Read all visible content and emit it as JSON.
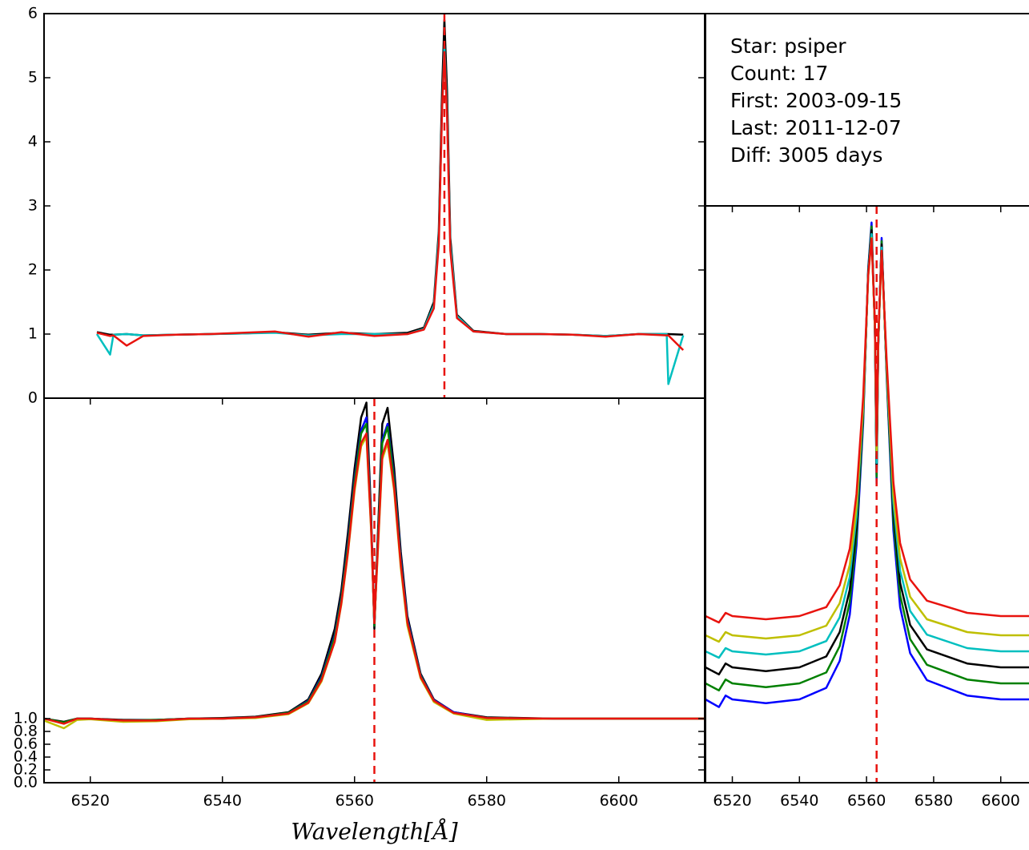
{
  "chart_data": [
    {
      "type": "line",
      "xlim": [
        6470,
        6670
      ],
      "ylim": [
        0,
        6
      ],
      "yticks": [
        0,
        1,
        2,
        3,
        4,
        5,
        6
      ],
      "vline": 6591.2,
      "x": [
        6486,
        6490,
        6491,
        6495,
        6500,
        6510,
        6520,
        6530,
        6540,
        6550,
        6560,
        6570,
        6580,
        6585,
        6588,
        6589.5,
        6590.5,
        6591.2,
        6592,
        6593,
        6595,
        6600,
        6610,
        6620,
        6630,
        6640,
        6650,
        6658.5,
        6659,
        6663.5
      ],
      "series": [
        {
          "color": "#000000",
          "values": [
            1.03,
            0.99,
            0.99,
            1.0,
            0.98,
            0.99,
            1.0,
            1.01,
            1.03,
            0.99,
            1.02,
            1.0,
            1.02,
            1.1,
            1.5,
            2.6,
            4.8,
            5.9,
            4.8,
            2.5,
            1.3,
            1.05,
            1.0,
            1.0,
            0.99,
            0.97,
            1.0,
            1.0,
            1.0,
            0.99
          ]
        },
        {
          "color": "#00bfbf",
          "values": [
            1.0,
            0.68,
            0.99,
            1.0,
            0.98,
            0.99,
            1.0,
            1.01,
            1.02,
            0.98,
            1.0,
            1.0,
            1.0,
            1.08,
            1.45,
            2.5,
            4.5,
            5.5,
            4.5,
            2.4,
            1.28,
            1.04,
            1.0,
            1.0,
            0.99,
            0.97,
            1.0,
            1.0,
            0.22,
            0.98
          ]
        },
        {
          "color": "#e8130e",
          "values": [
            1.02,
            0.97,
            0.98,
            0.82,
            0.97,
            0.99,
            1.0,
            1.02,
            1.04,
            0.96,
            1.03,
            0.97,
            1.0,
            1.07,
            1.4,
            2.4,
            4.5,
            5.4,
            4.4,
            2.3,
            1.25,
            1.04,
            1.0,
            1.0,
            0.99,
            0.96,
            1.0,
            0.98,
            0.98,
            0.75
          ]
        }
      ]
    },
    {
      "type": "line",
      "xlim": [
        6513,
        6613
      ],
      "ylim": [
        0,
        6
      ],
      "xlabel": "Wavelength[Å]",
      "xticks": [
        6520,
        6540,
        6560,
        6580,
        6600
      ],
      "yticks": [
        {
          "value": 0,
          "label": "0.0"
        },
        0.2,
        0.4,
        0.6,
        0.8,
        {
          "value": 1,
          "label": "1.0"
        }
      ],
      "vline": 6563,
      "x": [
        6513,
        6516,
        6518,
        6520,
        6525,
        6530,
        6535,
        6540,
        6545,
        6550,
        6553,
        6555,
        6557,
        6558,
        6559,
        6560,
        6561,
        6561.8,
        6562.5,
        6563,
        6563.5,
        6564.2,
        6565,
        6566,
        6567,
        6568,
        6570,
        6572,
        6575,
        6580,
        6590,
        6600,
        6613
      ],
      "series": [
        {
          "color": "#000000",
          "values": [
            1.0,
            0.95,
            1.0,
            1.0,
            0.98,
            0.98,
            1.0,
            1.01,
            1.03,
            1.1,
            1.3,
            1.7,
            2.4,
            3.0,
            3.9,
            4.9,
            5.7,
            5.93,
            4.2,
            2.4,
            3.8,
            5.6,
            5.85,
            4.9,
            3.6,
            2.6,
            1.7,
            1.3,
            1.1,
            1.02,
            1.0,
            1.0,
            1.0
          ]
        },
        {
          "color": "#0000ff",
          "values": [
            1.0,
            0.93,
            1.0,
            1.0,
            0.97,
            0.98,
            1.0,
            1.0,
            1.02,
            1.09,
            1.28,
            1.65,
            2.3,
            2.9,
            3.75,
            4.75,
            5.5,
            5.7,
            4.1,
            2.45,
            3.7,
            5.35,
            5.6,
            4.75,
            3.5,
            2.55,
            1.68,
            1.29,
            1.1,
            1.01,
            1.0,
            1.0,
            1.0
          ]
        },
        {
          "color": "#008000",
          "values": [
            1.0,
            0.94,
            1.0,
            1.0,
            0.97,
            0.98,
            1.0,
            1.0,
            1.02,
            1.09,
            1.27,
            1.63,
            2.27,
            2.87,
            3.7,
            4.7,
            5.45,
            5.6,
            4.05,
            2.45,
            3.68,
            5.3,
            5.55,
            4.7,
            3.45,
            2.52,
            1.67,
            1.28,
            1.09,
            1.01,
            1.0,
            1.0,
            1.0
          ]
        },
        {
          "color": "#bfbf00",
          "values": [
            0.97,
            0.85,
            0.98,
            0.99,
            0.95,
            0.96,
            0.99,
            1.0,
            1.01,
            1.07,
            1.24,
            1.58,
            2.2,
            2.78,
            3.58,
            4.55,
            5.25,
            5.4,
            3.95,
            2.5,
            3.55,
            5.05,
            5.3,
            4.55,
            3.35,
            2.45,
            1.63,
            1.26,
            1.08,
            0.98,
            1.0,
            1.0,
            1.0
          ]
        },
        {
          "color": "#e8130e",
          "values": [
            1.0,
            0.92,
            1.0,
            1.0,
            0.97,
            0.97,
            1.0,
            1.0,
            1.02,
            1.08,
            1.25,
            1.6,
            2.2,
            2.8,
            3.6,
            4.6,
            5.3,
            5.45,
            4.0,
            2.5,
            3.6,
            5.1,
            5.35,
            4.6,
            3.4,
            2.5,
            1.65,
            1.28,
            1.09,
            1.01,
            1.0,
            1.0,
            1.0
          ]
        }
      ]
    },
    {
      "type": "line",
      "xlim": [
        6512,
        6612
      ],
      "ylim": [
        0,
        9
      ],
      "xticks": [
        6520,
        6540,
        6560,
        6580,
        6600
      ],
      "vline": 6563,
      "x": [
        6512,
        6516,
        6518,
        6520,
        6530,
        6540,
        6548,
        6552,
        6555,
        6557,
        6559,
        6560.5,
        6561.5,
        6562.5,
        6563,
        6563.5,
        6564.5,
        6566,
        6568,
        6570,
        6573,
        6578,
        6590,
        6600,
        6612
      ],
      "series": [
        {
          "color": "#0000ff",
          "values": [
            1.3,
            1.18,
            1.36,
            1.3,
            1.24,
            1.3,
            1.48,
            1.9,
            2.62,
            3.7,
            5.62,
            8.02,
            8.74,
            7.06,
            4.66,
            6.82,
            8.5,
            6.34,
            3.94,
            2.74,
            2.02,
            1.6,
            1.36,
            1.3,
            1.3
          ]
        },
        {
          "color": "#008000",
          "values": [
            1.55,
            1.44,
            1.61,
            1.55,
            1.49,
            1.55,
            1.72,
            2.13,
            2.82,
            3.85,
            5.69,
            7.99,
            8.68,
            7.07,
            4.77,
            6.84,
            8.45,
            6.38,
            4.08,
            2.93,
            2.24,
            1.84,
            1.61,
            1.55,
            1.55
          ]
        },
        {
          "color": "#000000",
          "values": [
            1.8,
            1.69,
            1.86,
            1.8,
            1.74,
            1.8,
            1.97,
            2.35,
            3.01,
            4.0,
            5.76,
            7.96,
            8.62,
            7.08,
            4.88,
            6.86,
            8.4,
            6.42,
            4.22,
            3.12,
            2.46,
            2.08,
            1.86,
            1.8,
            1.8
          ]
        },
        {
          "color": "#00bfbf",
          "values": [
            2.05,
            1.95,
            2.1,
            2.05,
            2.0,
            2.05,
            2.21,
            2.58,
            3.21,
            4.15,
            5.83,
            7.93,
            8.56,
            7.09,
            4.99,
            6.88,
            8.35,
            6.46,
            4.36,
            3.31,
            2.68,
            2.31,
            2.1,
            2.05,
            2.05
          ]
        },
        {
          "color": "#bfbf00",
          "values": [
            2.3,
            2.2,
            2.35,
            2.3,
            2.25,
            2.3,
            2.45,
            2.8,
            3.4,
            4.3,
            5.9,
            7.9,
            8.5,
            7.1,
            5.1,
            6.9,
            8.3,
            6.5,
            4.5,
            3.5,
            2.9,
            2.55,
            2.35,
            2.3,
            2.3
          ]
        },
        {
          "color": "#e8130e",
          "values": [
            2.6,
            2.5,
            2.65,
            2.6,
            2.55,
            2.6,
            2.74,
            3.08,
            3.65,
            4.5,
            6.02,
            7.92,
            8.49,
            7.16,
            5.26,
            6.97,
            8.3,
            6.59,
            4.69,
            3.74,
            3.17,
            2.84,
            2.65,
            2.6,
            2.6
          ]
        }
      ]
    }
  ],
  "info_box": {
    "lines": [
      "Star: psiper",
      "Count: 17",
      "First: 2003-09-15",
      "Last: 2011-12-07",
      "Diff: 3005 days"
    ]
  }
}
